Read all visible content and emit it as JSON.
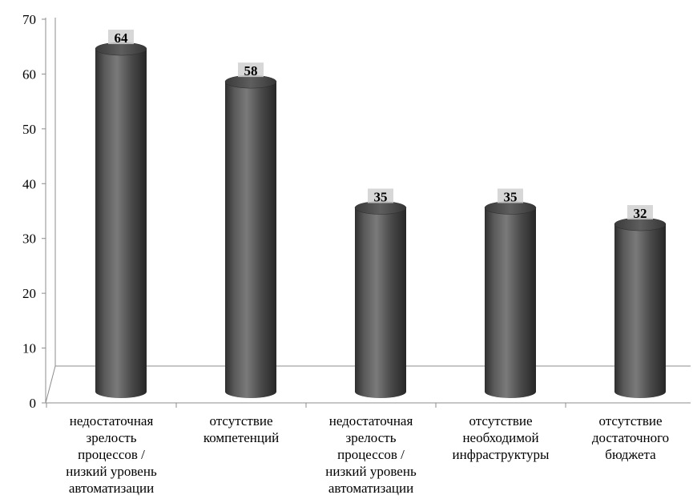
{
  "chart_data": {
    "type": "bar",
    "style": "3d-cylinder",
    "title": "",
    "xlabel": "",
    "ylabel": "",
    "ylim": [
      0,
      70
    ],
    "yticks": [
      0,
      10,
      20,
      30,
      40,
      50,
      60,
      70
    ],
    "ytick_labels": [
      "0",
      "10",
      "20",
      "30",
      "40",
      "50",
      "60",
      "70"
    ],
    "categories": [
      "недостаточная\nзрелость\nпроцессов /\nнизкий уровень\nавтоматизации",
      "отсутствие\nкомпетенций",
      "недостаточная\nзрелость\nпроцессов /\nнизкий уровень\nавтоматизации",
      "отсутствие\nнеобходимой\nинфраструктуры",
      "отсутствие\nдостаточного\nбюджета"
    ],
    "values": [
      64,
      58,
      35,
      35,
      32
    ],
    "data_labels": [
      "64",
      "58",
      "35",
      "35",
      "32"
    ],
    "bar_color": "#4a4a4a",
    "axis_color": "#8c8c8c",
    "grid": false,
    "legend": "none"
  }
}
